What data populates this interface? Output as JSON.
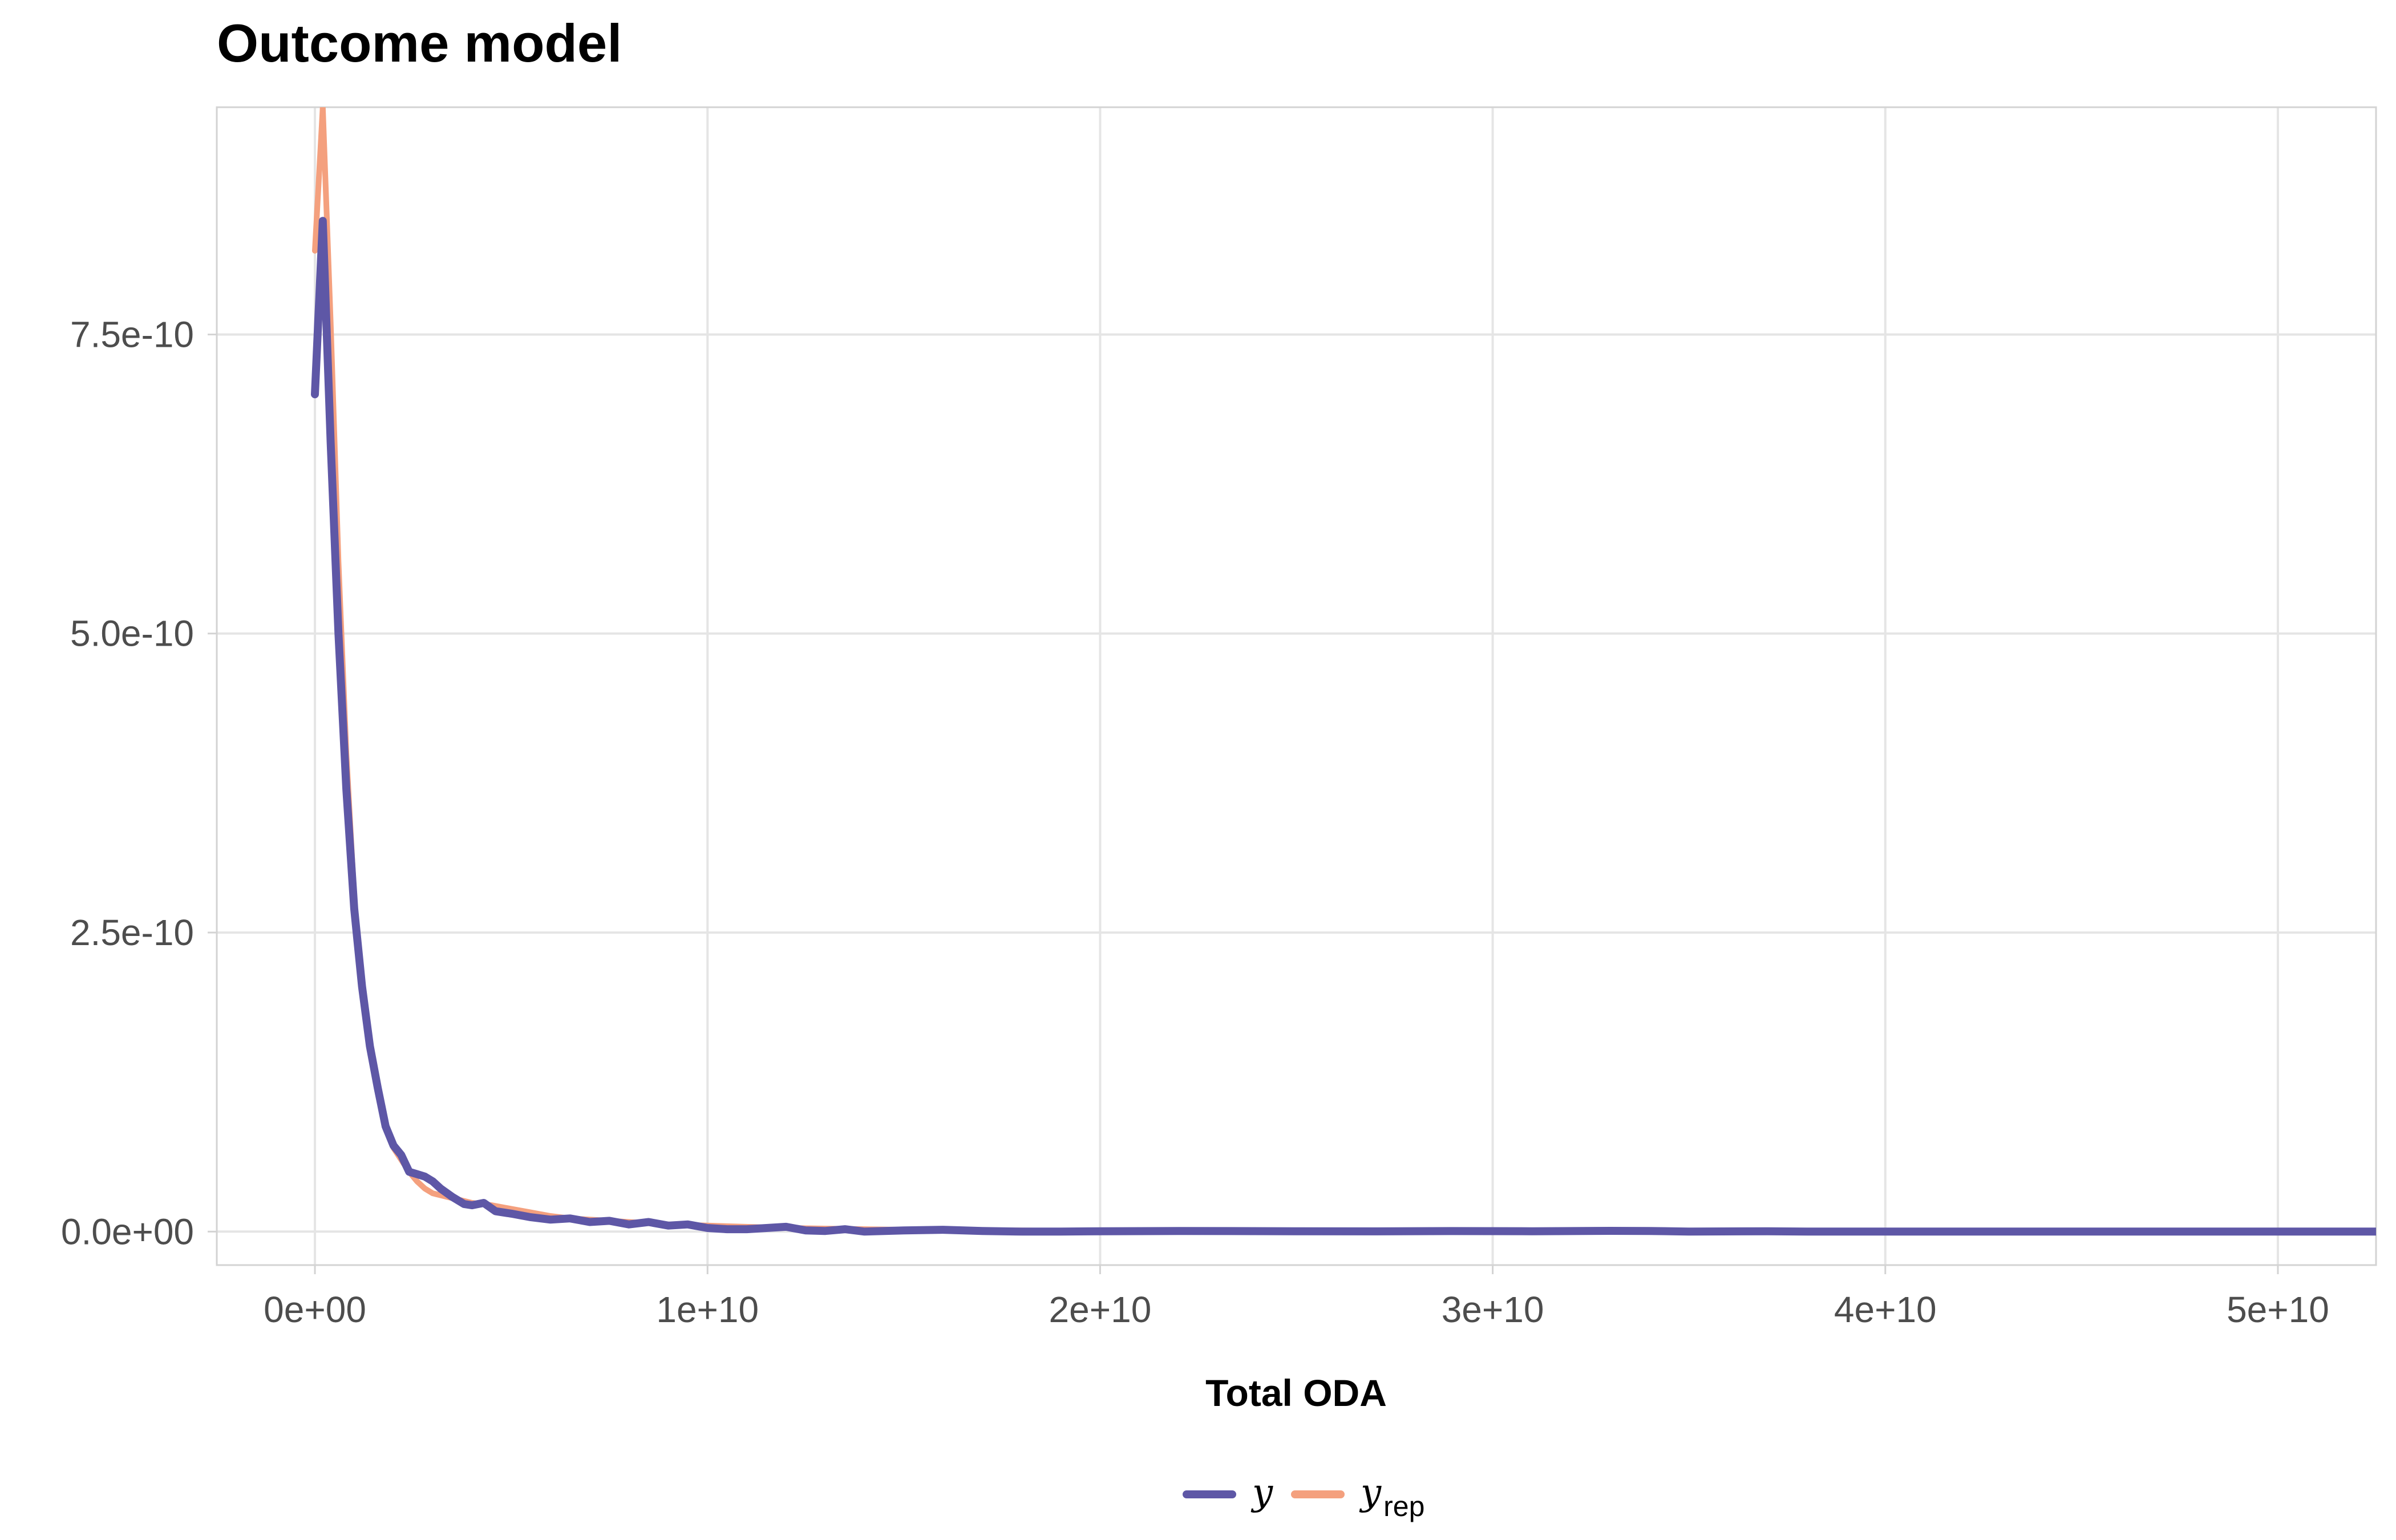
{
  "chart_data": {
    "type": "line",
    "title": "Outcome model",
    "xlabel": "Total ODA",
    "ylabel": "",
    "xlim": [
      -2500000000.0,
      52500000000.0
    ],
    "ylim": [
      -2.8e-11,
      9.4e-10
    ],
    "x_ticks": [
      0,
      10000000000.0,
      20000000000.0,
      30000000000.0,
      40000000000.0,
      50000000000.0
    ],
    "x_tick_labels": [
      "0e+00",
      "1e+10",
      "2e+10",
      "3e+10",
      "4e+10",
      "5e+10"
    ],
    "y_ticks": [
      0,
      2.5e-10,
      5e-10,
      7.5e-10
    ],
    "y_tick_labels": [
      "0.0e+00",
      "2.5e-10",
      "5.0e-10",
      "7.5e-10"
    ],
    "grid": true,
    "legend_position": "bottom",
    "legend": [
      {
        "label": "y",
        "sub": "",
        "color": "#5e57a6"
      },
      {
        "label": "y",
        "sub": "rep",
        "color": "#f4a07e"
      }
    ],
    "series": [
      {
        "color": "#f4a07e",
        "x": [
          0,
          200000000.0,
          400000000.0,
          600000000.0,
          800000000.0,
          1000000000.0,
          1200000000.0,
          1400000000.0,
          1600000000.0,
          1800000000.0,
          2000000000.0,
          2200000000.0,
          2400000000.0,
          2600000000.0,
          2800000000.0,
          3000000000.0,
          3500000000.0,
          4000000000.0,
          4500000000.0,
          5000000000.0,
          5500000000.0,
          6000000000.0,
          6500000000.0,
          7000000000.0,
          7500000000.0,
          8000000000.0,
          8500000000.0,
          9000000000.0,
          10000000000.0,
          12000000000.0,
          15000000000.0,
          20000000000.0,
          30000000000.0,
          40000000000.0,
          50000000000.0,
          52500000000.0
        ],
        "y": [
          8.2e-10,
          9.4e-10,
          7.6e-10,
          5.6e-10,
          4e-10,
          2.8e-10,
          2e-10,
          1.55e-10,
          1.2e-10,
          9e-11,
          7e-11,
          6e-11,
          5e-11,
          4.2e-11,
          3.6e-11,
          3.2e-11,
          2.8e-11,
          2.4e-11,
          2.2e-11,
          1.9e-11,
          1.6e-11,
          1.3e-11,
          1.1e-11,
          1e-11,
          9e-12,
          8e-12,
          7e-12,
          6e-12,
          5e-12,
          3e-12,
          1.5e-12,
          5e-13,
          1e-13,
          0,
          0,
          0
        ]
      },
      {
        "color": "#5e57a6",
        "x": [
          0,
          200000000.0,
          400000000.0,
          600000000.0,
          800000000.0,
          1000000000.0,
          1200000000.0,
          1400000000.0,
          1600000000.0,
          1800000000.0,
          2000000000.0,
          2200000000.0,
          2400000000.0,
          2600000000.0,
          2800000000.0,
          3000000000.0,
          3200000000.0,
          3500000000.0,
          3800000000.0,
          4000000000.0,
          4300000000.0,
          4600000000.0,
          5000000000.0,
          5500000000.0,
          6000000000.0,
          6500000000.0,
          7000000000.0,
          7500000000.0,
          8000000000.0,
          8500000000.0,
          9000000000.0,
          9500000000.0,
          10000000000.0,
          10500000000.0,
          11000000000.0,
          11500000000.0,
          12000000000.0,
          12500000000.0,
          13000000000.0,
          13500000000.0,
          14000000000.0,
          15000000000.0,
          16000000000.0,
          17000000000.0,
          18000000000.0,
          19000000000.0,
          20000000000.0,
          22000000000.0,
          25000000000.0,
          27000000000.0,
          29000000000.0,
          31000000000.0,
          33000000000.0,
          34000000000.0,
          35000000000.0,
          37000000000.0,
          38000000000.0,
          40000000000.0,
          45000000000.0,
          50000000000.0,
          52500000000.0
        ],
        "y": [
          7e-10,
          8.45e-10,
          6.6e-10,
          5e-10,
          3.7e-10,
          2.7e-10,
          2.05e-10,
          1.55e-10,
          1.2e-10,
          8.8e-11,
          7.2e-11,
          6.4e-11,
          5e-11,
          4.8e-11,
          4.6e-11,
          4.2e-11,
          3.6e-11,
          2.9e-11,
          2.3e-11,
          2.2e-11,
          2.4e-11,
          1.7e-11,
          1.5e-11,
          1.2e-11,
          1e-11,
          1.1e-11,
          8e-12,
          9e-12,
          6e-12,
          8e-12,
          5e-12,
          6e-12,
          3e-12,
          2e-12,
          2e-12,
          3e-12,
          4e-12,
          1e-12,
          5e-13,
          2e-12,
          0,
          1e-12,
          1.5e-12,
          5e-13,
          0,
          0,
          3e-13,
          5e-13,
          3e-13,
          2e-13,
          4e-13,
          3e-13,
          6e-13,
          5e-13,
          0,
          3e-13,
          0,
          0,
          0,
          0,
          0
        ]
      }
    ]
  }
}
